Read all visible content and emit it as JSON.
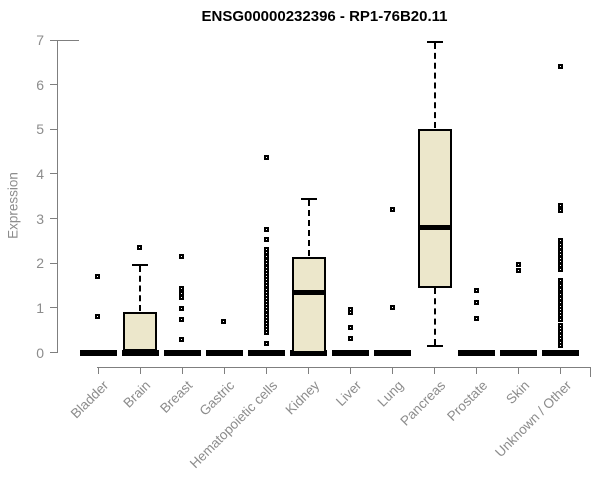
{
  "chart_data": {
    "type": "boxplot",
    "title": "ENSG00000232396 - RP1-76B20.11",
    "xlabel": "",
    "ylabel": "Expression",
    "ylim": [
      0,
      7
    ],
    "y_ticks": [
      0,
      1,
      2,
      3,
      4,
      5,
      6,
      7
    ],
    "grid": false,
    "legend": "none",
    "categories": [
      "Bladder",
      "Brain",
      "Breast",
      "Gastric",
      "Hematopoietic cells",
      "Kidney",
      "Liver",
      "Lung",
      "Pancreas",
      "Prostate",
      "Skin",
      "Unknown / Other"
    ],
    "series": [
      {
        "category": "Bladder",
        "box": null,
        "zero_bar": true,
        "outliers": [
          1.7,
          0.8
        ]
      },
      {
        "category": "Brain",
        "box": {
          "q1": 0,
          "median": 0.03,
          "q3": 0.9,
          "whisker_low": 0,
          "whisker_high": 1.95
        },
        "zero_bar": true,
        "outliers": [
          2.35
        ]
      },
      {
        "category": "Breast",
        "box": null,
        "zero_bar": true,
        "outliers": [
          2.15,
          1.43,
          1.32,
          1.23,
          0.98,
          0.72,
          0.28
        ]
      },
      {
        "category": "Gastric",
        "box": null,
        "zero_bar": true,
        "outliers": [
          0.68
        ]
      },
      {
        "category": "Hematopoietic cells",
        "box": null,
        "zero_bar": true,
        "outliers": [
          4.35,
          2.74,
          2.52,
          2.3,
          2.22,
          2.14,
          2.06,
          1.98,
          1.9,
          1.83,
          1.76,
          1.69,
          1.62,
          1.55,
          1.48,
          1.41,
          1.34,
          1.27,
          1.2,
          1.13,
          1.06,
          0.99,
          0.92,
          0.85,
          0.78,
          0.71,
          0.64,
          0.57,
          0.5,
          0.44,
          0.2
        ]
      },
      {
        "category": "Kidney",
        "box": {
          "q1": 0,
          "median": 1.35,
          "q3": 2.15,
          "whisker_low": 0,
          "whisker_high": 3.45
        },
        "zero_bar": true,
        "outliers": []
      },
      {
        "category": "Liver",
        "box": null,
        "zero_bar": true,
        "outliers": [
          0.95,
          0.88,
          0.56,
          0.3
        ]
      },
      {
        "category": "Lung",
        "box": null,
        "zero_bar": true,
        "outliers": [
          3.2,
          1.0
        ]
      },
      {
        "category": "Pancreas",
        "box": {
          "q1": 1.45,
          "median": 2.8,
          "q3": 5.0,
          "whisker_low": 0.15,
          "whisker_high": 6.95
        },
        "zero_bar": false,
        "outliers": []
      },
      {
        "category": "Prostate",
        "box": null,
        "zero_bar": true,
        "outliers": [
          1.38,
          1.12,
          0.76
        ]
      },
      {
        "category": "Skin",
        "box": null,
        "zero_bar": true,
        "outliers": [
          1.95,
          1.83
        ]
      },
      {
        "category": "Unknown / Other",
        "box": null,
        "zero_bar": true,
        "outliers": [
          6.4,
          3.28,
          3.16,
          2.5,
          2.42,
          2.34,
          2.26,
          2.18,
          2.1,
          2.02,
          1.94,
          1.86,
          1.6,
          1.5,
          1.4,
          1.3,
          1.2,
          1.1,
          1.02,
          0.95,
          0.88,
          0.81,
          0.74,
          0.6,
          0.52,
          0.45,
          0.38,
          0.3,
          0.22,
          0.15
        ]
      }
    ],
    "colors": {
      "box_fill": "#ece7cb",
      "box_border": "#000000",
      "median": "#000000",
      "whisker": "#000000",
      "outlier": "#000000",
      "axis": "#7f7f7f",
      "tick_label": "#8c8c8c",
      "title": "#000000",
      "background": "#ffffff"
    }
  }
}
